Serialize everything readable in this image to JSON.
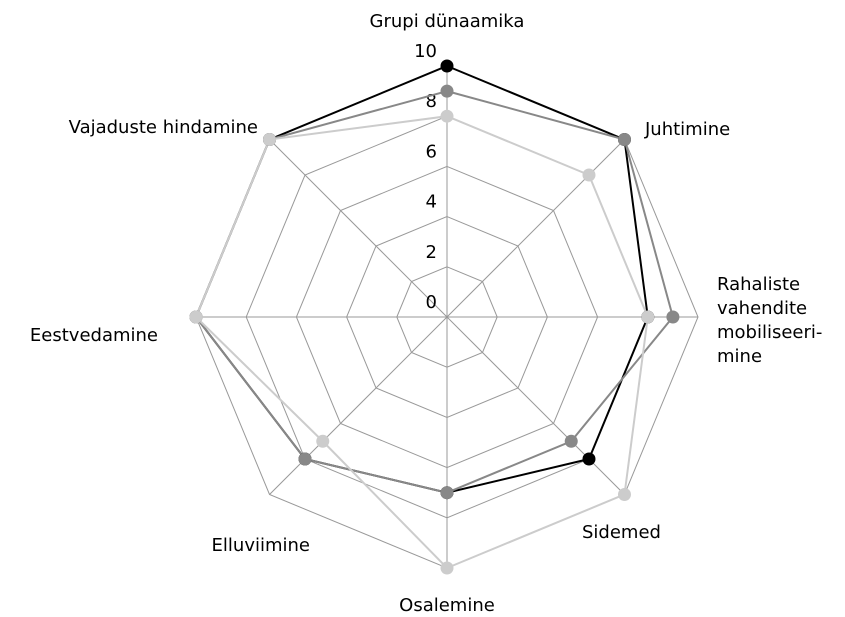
{
  "chart_data": {
    "type": "radar",
    "categories": [
      "Grupi dünaamika",
      "Juhtimine",
      "Rahaliste\nvahendite\nmobiliseeri-\nmine",
      "Sidemed",
      "Osalemine",
      "Elluviimine",
      "Eestvedamine",
      "Vajaduste hindamine"
    ],
    "series": [
      {
        "color": "#000000",
        "values": [
          10,
          10,
          8,
          8,
          7,
          8,
          10,
          10
        ]
      },
      {
        "color": "#888888",
        "values": [
          9,
          10,
          9,
          7,
          7,
          8,
          10,
          10
        ]
      },
      {
        "color": "#cccccc",
        "values": [
          8,
          8,
          8,
          10,
          10,
          7,
          10,
          10
        ]
      }
    ],
    "ylim": [
      0,
      10
    ],
    "yticks": [
      0,
      2,
      4,
      6,
      8,
      10
    ],
    "grid": true
  }
}
